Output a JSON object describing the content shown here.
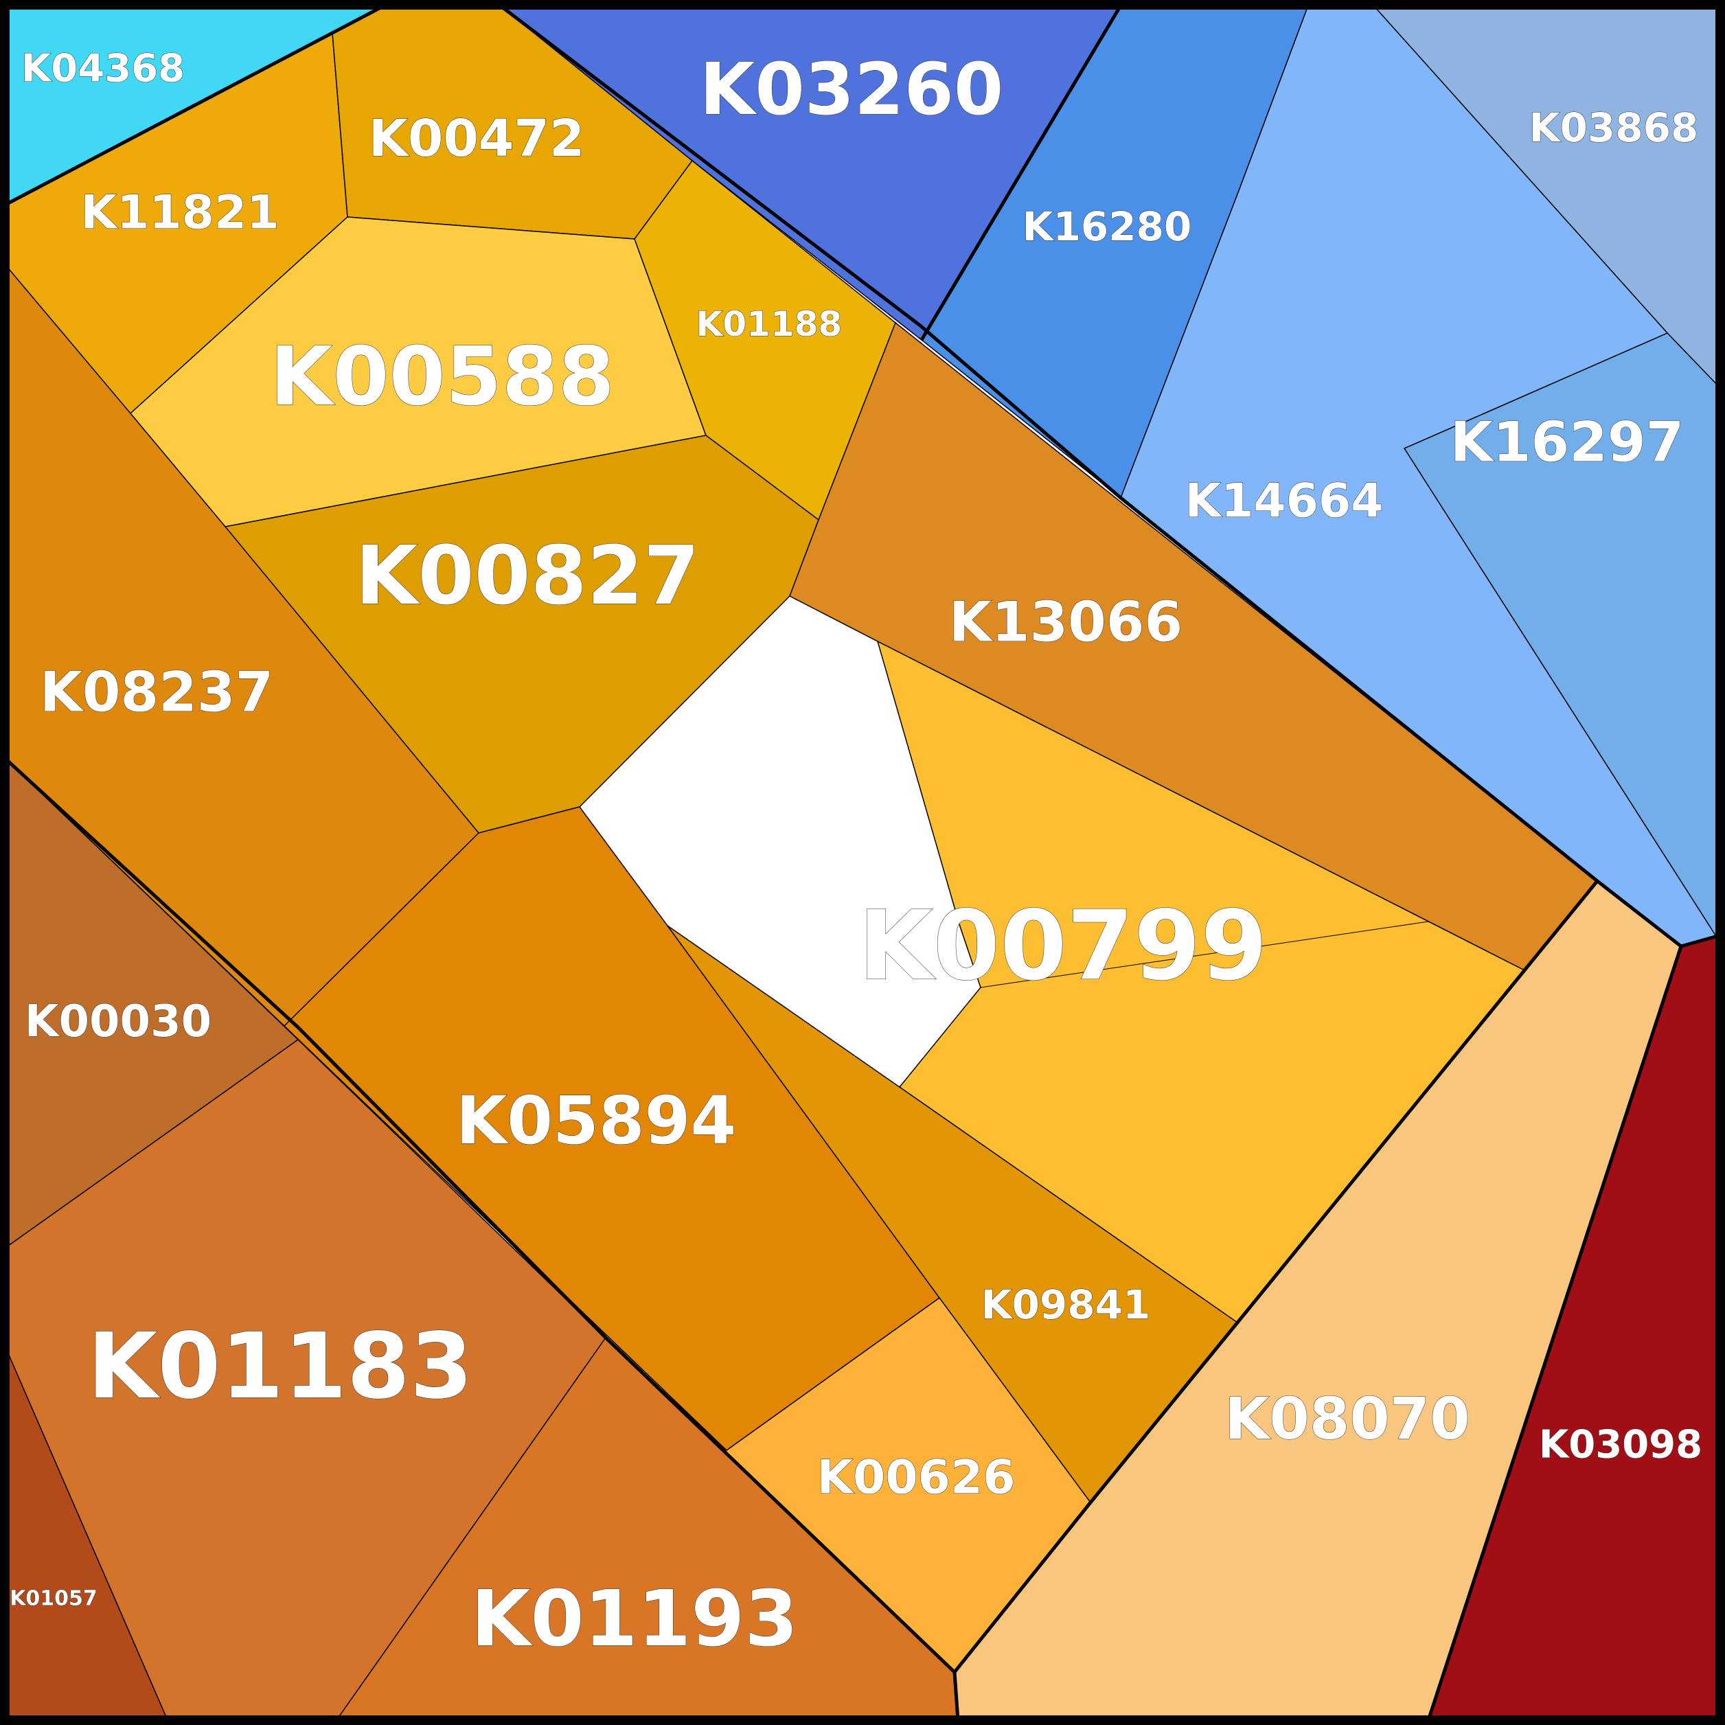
{
  "chart_data": {
    "type": "voronoi-treemap",
    "title": "",
    "cells": [
      {
        "label": "K04368",
        "color": "#40D8F4"
      },
      {
        "label": "K03260",
        "color": "#5072DC"
      },
      {
        "label": "K16280",
        "color": "#4A90E8"
      },
      {
        "label": "K03868",
        "color": "#90B4E2"
      },
      {
        "label": "K16297",
        "color": "#72AEEA"
      },
      {
        "label": "K14664",
        "color": "#82B6FA"
      },
      {
        "label": "K11821",
        "color": "#EEAA0A"
      },
      {
        "label": "K00472",
        "color": "#E8A602"
      },
      {
        "label": "K00588",
        "color": "#FECC42"
      },
      {
        "label": "K01188",
        "color": "#ECB206"
      },
      {
        "label": "K00827",
        "color": "#DE9E02"
      },
      {
        "label": "K08237",
        "color": "#DE880E"
      },
      {
        "label": "K13066",
        "color": "#DE8A22"
      },
      {
        "label": "K00799",
        "color": "#FEBE32"
      },
      {
        "label": "K00030",
        "color": "#BE6E2A"
      },
      {
        "label": "K05894",
        "color": "#E28606"
      },
      {
        "label": "K09841",
        "color": "#E29606"
      },
      {
        "label": "K01183",
        "color": "#D2742C"
      },
      {
        "label": "K00626",
        "color": "#FEB23A"
      },
      {
        "label": "K08070",
        "color": "#F8C67E"
      },
      {
        "label": "K03098",
        "color": "#A20E16"
      },
      {
        "label": "K01057",
        "color": "#B24A1A"
      },
      {
        "label": "K01193",
        "color": "#D87626"
      }
    ]
  }
}
